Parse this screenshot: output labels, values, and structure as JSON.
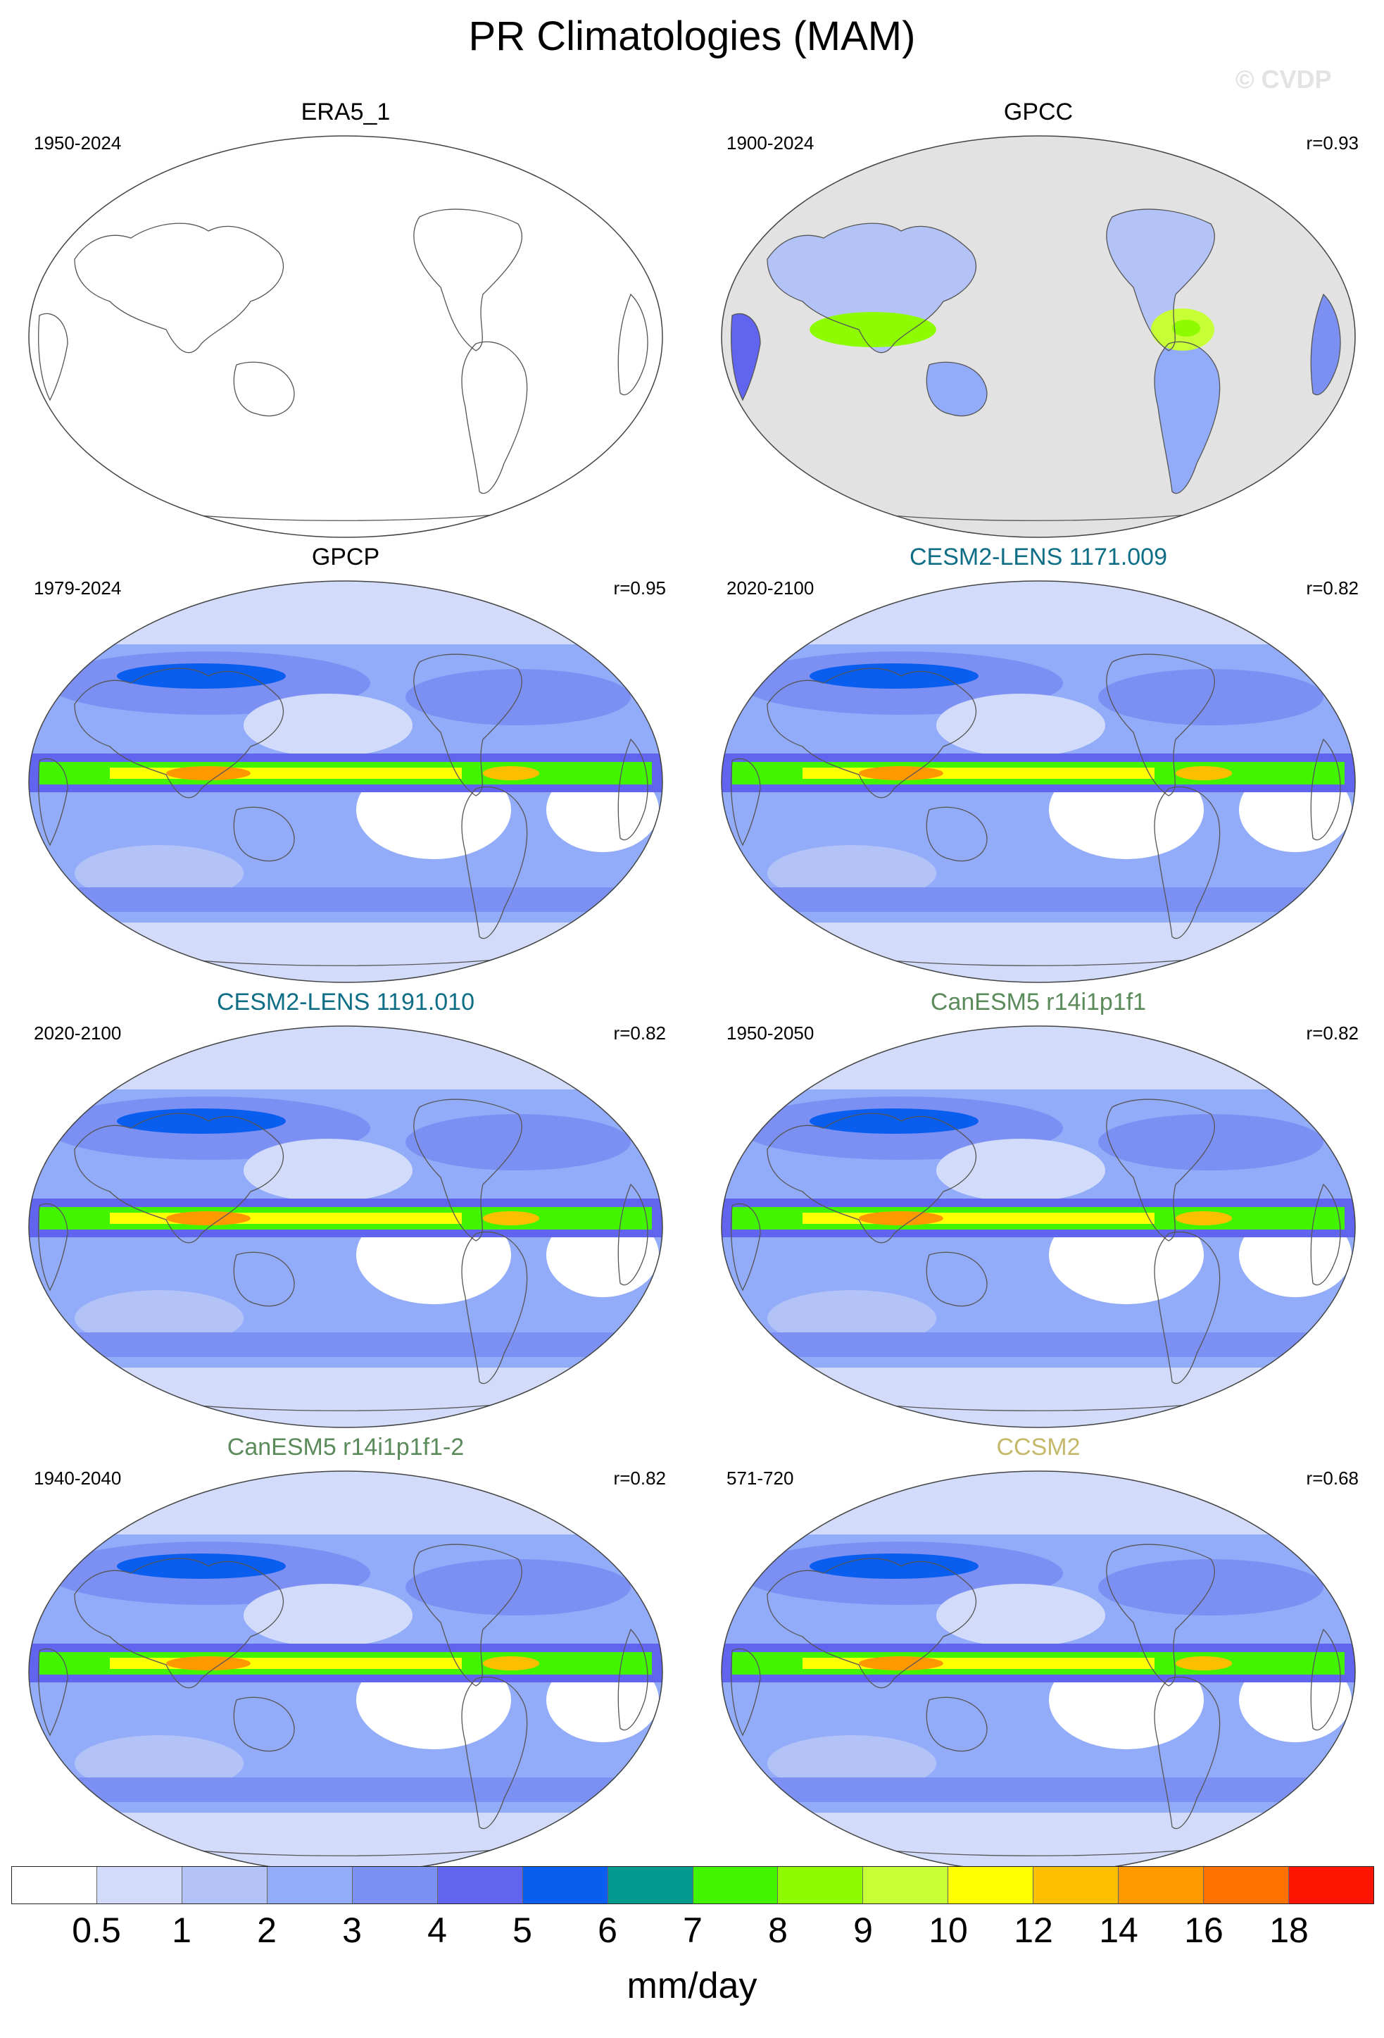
{
  "title": "PR Climatologies (MAM)",
  "copyright": "© CVDP",
  "panels": [
    {
      "title": "ERA5_1",
      "period": "1950-2024",
      "corr": "",
      "title_color": "#000000",
      "fill": "empty"
    },
    {
      "title": "GPCC",
      "period": "1900-2024",
      "corr": "r=0.93",
      "title_color": "#000000",
      "fill": "land-only"
    },
    {
      "title": "GPCP",
      "period": "1979-2024",
      "corr": "r=0.95",
      "title_color": "#000000",
      "fill": "global"
    },
    {
      "title": "CESM2-LENS 1171.009",
      "period": "2020-2100",
      "corr": "r=0.82",
      "title_color": "#0e6e86",
      "fill": "global"
    },
    {
      "title": "CESM2-LENS 1191.010",
      "period": "2020-2100",
      "corr": "r=0.82",
      "title_color": "#0e6e86",
      "fill": "global"
    },
    {
      "title": "CanESM5 r14i1p1f1",
      "period": "1950-2050",
      "corr": "r=0.82",
      "title_color": "#5b8a5b",
      "fill": "global"
    },
    {
      "title": "CanESM5 r14i1p1f1-2",
      "period": "1940-2040",
      "corr": "r=0.82",
      "title_color": "#5b8a5b",
      "fill": "global"
    },
    {
      "title": "CCSM2",
      "period": "571-720",
      "corr": "r=0.68",
      "title_color": "#c4b86a",
      "fill": "global"
    }
  ],
  "colorbar": {
    "colors": [
      "#ffffff",
      "#d2dcfa",
      "#b3c3f8",
      "#93acf9",
      "#7c90f3",
      "#6164ee",
      "#0a5eef",
      "#02998e",
      "#43f400",
      "#8ffb00",
      "#c6ff35",
      "#ffff00",
      "#fdc000",
      "#ff9900",
      "#ff7100",
      "#ff1400"
    ],
    "ticks": [
      "0.5",
      "1",
      "2",
      "3",
      "4",
      "5",
      "6",
      "7",
      "8",
      "9",
      "10",
      "12",
      "14",
      "16",
      "18"
    ],
    "units": "mm/day"
  }
}
